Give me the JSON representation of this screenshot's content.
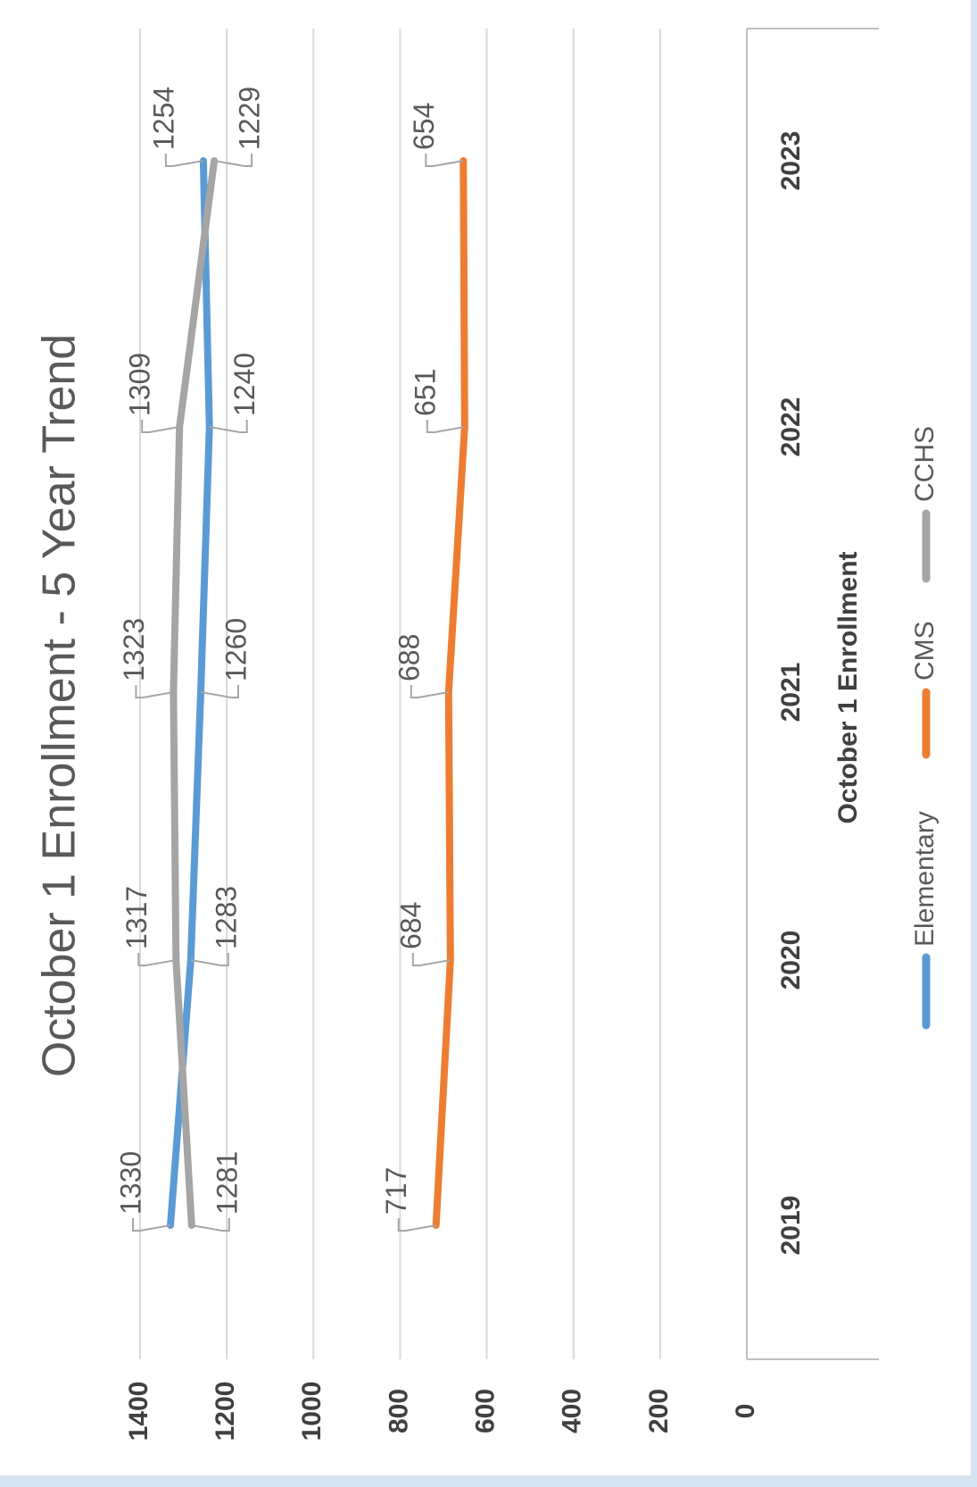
{
  "chart_data": {
    "type": "line",
    "orientation": "rotated-90-clockwise",
    "title": "October 1 Enrollment - 5 Year Trend",
    "xlabel": "October 1 Enrollment",
    "ylabel": "",
    "categories": [
      "2019",
      "2020",
      "2021",
      "2022",
      "2023"
    ],
    "ylim": [
      0,
      1400
    ],
    "yticks": [
      0,
      200,
      400,
      600,
      800,
      1000,
      1200,
      1400
    ],
    "grid": true,
    "legend": "bottom",
    "series": [
      {
        "name": "Elementary",
        "values": [
          1330,
          1283,
          1260,
          1240,
          1254
        ],
        "color": "#5b9bd5"
      },
      {
        "name": "CMS",
        "values": [
          717,
          684,
          688,
          651,
          654
        ],
        "color": "#ed7d31"
      },
      {
        "name": "CCHS",
        "values": [
          1281,
          1317,
          1323,
          1309,
          1229
        ],
        "color": "#a5a5a5"
      }
    ]
  },
  "colors": {
    "grid": "#d9d9d9",
    "axis": "#bfbfbf",
    "background": "#ffffff",
    "outer": "#d6e3f0"
  }
}
